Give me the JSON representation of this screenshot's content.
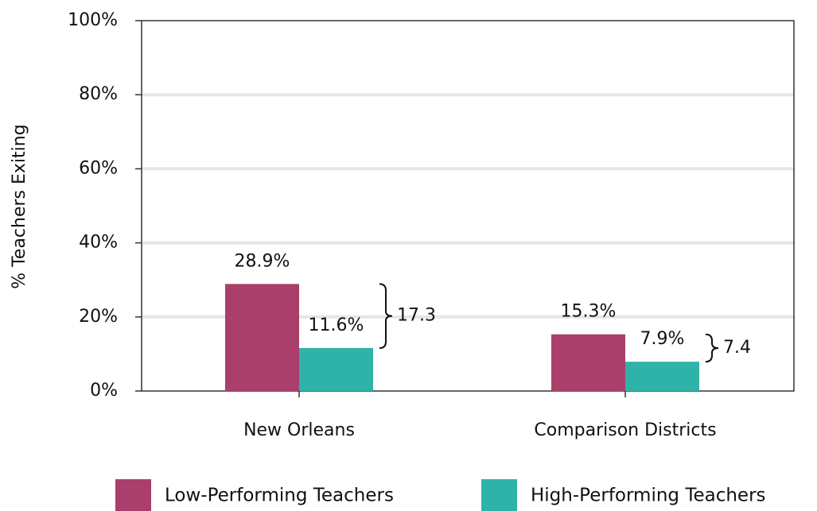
{
  "chart_data": {
    "type": "bar",
    "y_label": "% Teachers Exiting",
    "categories": [
      "New Orleans",
      "Comparison Districts"
    ],
    "series": [
      {
        "name": "Low-Performing Teachers",
        "color": "#a93f6a",
        "values": [
          28.9,
          15.3
        ],
        "value_labels": [
          "28.9%",
          "15.3%"
        ]
      },
      {
        "name": "High-Performing Teachers",
        "color": "#2fb3a9",
        "values": [
          11.6,
          7.9
        ],
        "value_labels": [
          "11.6%",
          "7.9%"
        ]
      }
    ],
    "annotations": [
      "17.3",
      "7.4"
    ],
    "ylim": [
      0,
      100
    ],
    "yticks": [
      {
        "value": 0,
        "label": "0%"
      },
      {
        "value": 20,
        "label": "20%"
      },
      {
        "value": 40,
        "label": "40%"
      },
      {
        "value": 60,
        "label": "60%"
      },
      {
        "value": 80,
        "label": "80%"
      },
      {
        "value": 100,
        "label": "100%"
      }
    ],
    "grid": true,
    "legend": "bottom"
  }
}
